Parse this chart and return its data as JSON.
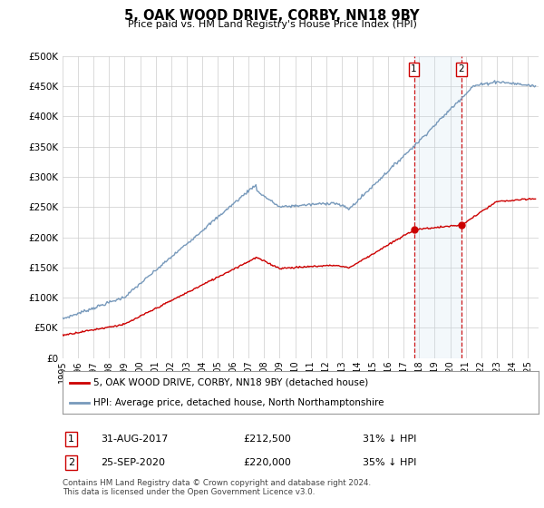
{
  "title": "5, OAK WOOD DRIVE, CORBY, NN18 9BY",
  "subtitle": "Price paid vs. HM Land Registry's House Price Index (HPI)",
  "ylabel_ticks": [
    "£0",
    "£50K",
    "£100K",
    "£150K",
    "£200K",
    "£250K",
    "£300K",
    "£350K",
    "£400K",
    "£450K",
    "£500K"
  ],
  "ytick_values": [
    0,
    50000,
    100000,
    150000,
    200000,
    250000,
    300000,
    350000,
    400000,
    450000,
    500000
  ],
  "ylim": [
    0,
    500000
  ],
  "xlim_start": 1995.3,
  "xlim_end": 2025.7,
  "hpi_color": "#7799bb",
  "price_color": "#cc0000",
  "vline_color": "#cc0000",
  "highlight_box_color": "#cce0f0",
  "grid_color": "#cccccc",
  "background_color": "#ffffff",
  "legend_label_price": "5, OAK WOOD DRIVE, CORBY, NN18 9BY (detached house)",
  "legend_label_hpi": "HPI: Average price, detached house, North Northamptonshire",
  "sale1_date": 2017.66,
  "sale1_price": 212500,
  "sale2_date": 2020.73,
  "sale2_price": 220000,
  "footer": "Contains HM Land Registry data © Crown copyright and database right 2024.\nThis data is licensed under the Open Government Licence v3.0.",
  "table_rows": [
    {
      "num": "1",
      "date": "31-AUG-2017",
      "price": "£212,500",
      "pct": "31% ↓ HPI"
    },
    {
      "num": "2",
      "date": "25-SEP-2020",
      "price": "£220,000",
      "pct": "35% ↓ HPI"
    }
  ]
}
